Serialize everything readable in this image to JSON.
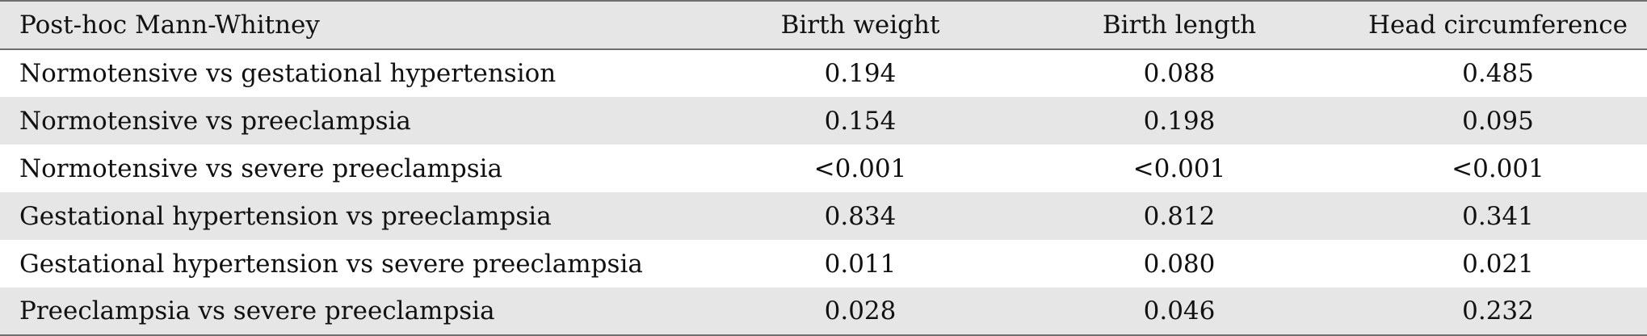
{
  "table": {
    "headers": [
      "Post-hoc Mann-Whitney",
      "Birth weight",
      "Birth length",
      "Head circumference"
    ],
    "rows": [
      [
        "Normotensive vs gestational hypertension",
        "0.194",
        "0.088",
        "0.485"
      ],
      [
        "Normotensive vs preeclampsia",
        "0.154",
        "0.198",
        "0.095"
      ],
      [
        "Normotensive vs severe preeclampsia",
        "<0.001",
        "<0.001",
        "<0.001"
      ],
      [
        "Gestational hypertension vs preeclampsia",
        "0.834",
        "0.812",
        "0.341"
      ],
      [
        "Gestational hypertension vs severe preeclampsia",
        "0.011",
        "0.080",
        "0.021"
      ],
      [
        "Preeclampsia vs severe preeclampsia",
        "0.028",
        "0.046",
        "0.232"
      ]
    ]
  }
}
